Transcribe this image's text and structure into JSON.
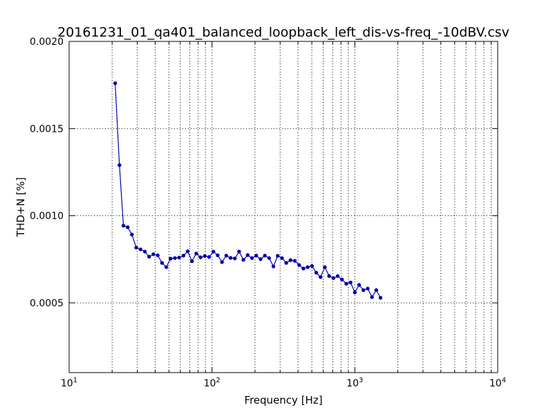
{
  "chart_data": {
    "type": "line",
    "title": "20161231_01_qa401_balanced_loopback_left_dis-vs-freq_-10dBV.csv",
    "xlabel": "Frequency [Hz]",
    "ylabel": "THD+N [%]",
    "xscale": "log",
    "xlim": [
      10,
      10000
    ],
    "ylim": [
      0.0001,
      0.002
    ],
    "xticks": [
      {
        "value": 10,
        "base": "10",
        "exp": "1"
      },
      {
        "value": 100,
        "base": "10",
        "exp": "2"
      },
      {
        "value": 1000,
        "base": "10",
        "exp": "3"
      },
      {
        "value": 10000,
        "base": "10",
        "exp": "4"
      }
    ],
    "yticks": [
      {
        "value": 0.0005,
        "label": "0.0005"
      },
      {
        "value": 0.001,
        "label": "0.0010"
      },
      {
        "value": 0.0015,
        "label": "0.0015"
      },
      {
        "value": 0.002,
        "label": "0.0020"
      }
    ],
    "grid": true,
    "color": "#0000aa",
    "series": [
      {
        "x": [
          21,
          22.5,
          24,
          25.7,
          27.5,
          29.5,
          31.6,
          33.9,
          36.3,
          38.9,
          41.7,
          44.7,
          47.9,
          51.3,
          55,
          58.9,
          63.1,
          67.6,
          72.4,
          77.6,
          83.2,
          89.1,
          95.5,
          102.3,
          109.6,
          117.5,
          125.9,
          134.9,
          144.5,
          154.9,
          166,
          177.8,
          190.5,
          204.2,
          218.8,
          234.4,
          251.2,
          269.2,
          288.4,
          309,
          331.1,
          354.8,
          380.2,
          407.4,
          436.5,
          467.7,
          501.2,
          537,
          575.4,
          616.6,
          660.7,
          707.9,
          758.6,
          812.8,
          871,
          933.3,
          1000,
          1071.5,
          1148.2,
          1230.3,
          1318.3,
          1412.5,
          1513.6
        ],
        "y": [
          0.00176,
          0.00129,
          0.000943,
          0.000934,
          0.000892,
          0.000817,
          0.000807,
          0.000794,
          0.000765,
          0.000779,
          0.000773,
          0.000729,
          0.000705,
          0.000754,
          0.000757,
          0.00076,
          0.000771,
          0.000796,
          0.000739,
          0.000783,
          0.000761,
          0.000769,
          0.000763,
          0.000794,
          0.000773,
          0.000734,
          0.000771,
          0.000758,
          0.000755,
          0.000794,
          0.000747,
          0.000774,
          0.000757,
          0.000771,
          0.000751,
          0.000771,
          0.000757,
          0.000709,
          0.00077,
          0.000757,
          0.000729,
          0.000745,
          0.000741,
          0.000717,
          0.000697,
          0.000705,
          0.000712,
          0.000673,
          0.000648,
          0.000705,
          0.000654,
          0.000642,
          0.000654,
          0.000634,
          0.00061,
          0.000617,
          0.00056,
          0.000603,
          0.000573,
          0.000582,
          0.000533,
          0.000573,
          0.000529
        ]
      }
    ]
  }
}
